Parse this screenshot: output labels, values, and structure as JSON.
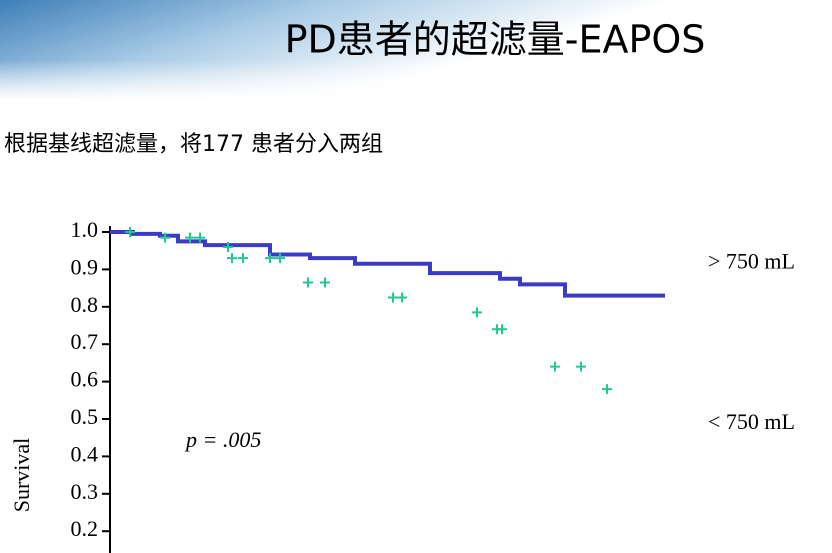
{
  "chart_data": {
    "type": "line",
    "title": "PD患者的超滤量-EAPOS",
    "subtitle": "根据基线超滤量，将177 患者分入两组",
    "y_label": "Survival",
    "annotation": "p = .005",
    "xlim": [
      0,
      60
    ],
    "ylim": [
      0,
      1
    ],
    "yticks": [
      {
        "value": 1,
        "label": "1.0"
      },
      {
        "value": 0.9,
        "label": "0.9"
      },
      {
        "value": 0.8,
        "label": "0.8"
      },
      {
        "value": 0.7,
        "label": "0.7"
      },
      {
        "value": 0.6,
        "label": "0.6"
      },
      {
        "value": 0.5,
        "label": "0.5"
      },
      {
        "value": 0.4,
        "label": "0.4"
      },
      {
        "value": 0.3,
        "label": "0.3"
      },
      {
        "value": 0.2,
        "label": "0.2"
      }
    ],
    "series": [
      {
        "name": "> 750 mL",
        "color": "#3b3bc8",
        "mark": "step",
        "x": [
          0,
          2.3,
          5,
          6.8,
          9.5,
          16,
          20,
          24.5,
          32,
          39,
          41,
          45.5,
          55.5
        ],
        "values": [
          1,
          0.995,
          0.99,
          0.975,
          0.965,
          0.94,
          0.93,
          0.915,
          0.89,
          0.875,
          0.86,
          0.83,
          0.83
        ]
      },
      {
        "name": "< 750 mL",
        "color": "#1fc98f",
        "mark": "plus",
        "x": [
          2,
          5.5,
          8,
          9,
          11.8,
          12.2,
          13.3,
          16,
          17,
          19.8,
          21.5,
          28.3,
          29.2,
          36.7,
          38.7,
          39.2,
          44.5,
          47.1,
          49.7
        ],
        "values": [
          1,
          0.985,
          0.985,
          0.985,
          0.96,
          0.93,
          0.93,
          0.93,
          0.93,
          0.865,
          0.865,
          0.825,
          0.825,
          0.785,
          0.74,
          0.74,
          0.64,
          0.64,
          0.58
        ]
      }
    ]
  }
}
